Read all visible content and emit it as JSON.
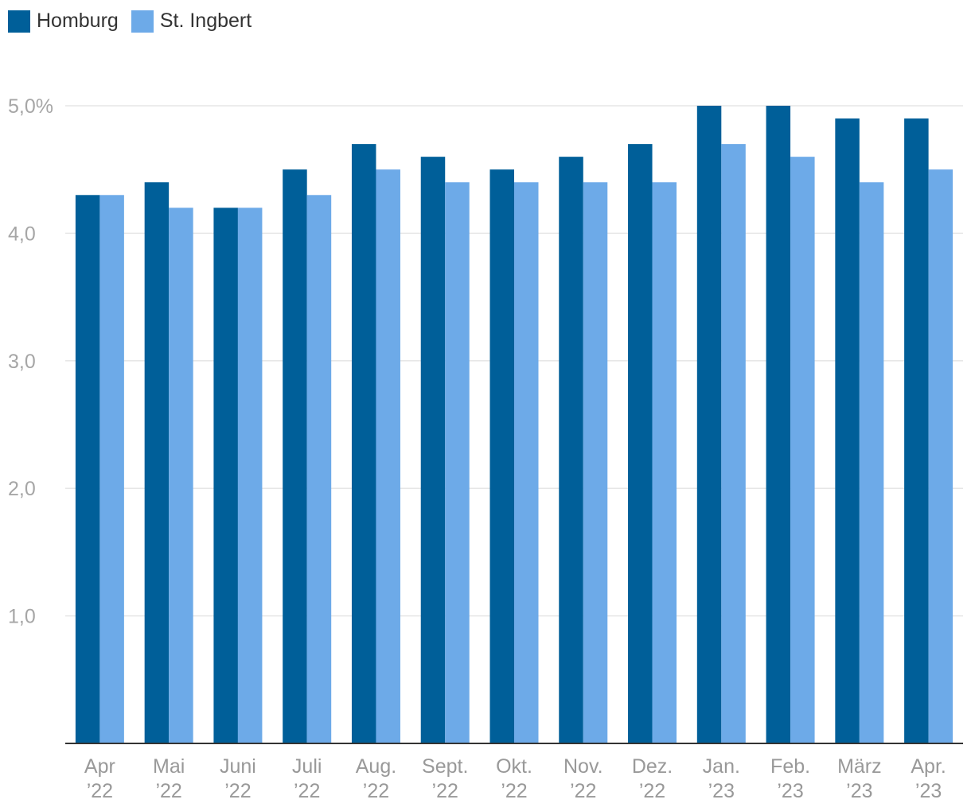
{
  "chart_data": {
    "type": "bar",
    "categories": [
      [
        "Apr",
        "’22"
      ],
      [
        "Mai",
        "’22"
      ],
      [
        "Juni",
        "’22"
      ],
      [
        "Juli",
        "’22"
      ],
      [
        "Aug.",
        "’22"
      ],
      [
        "Sept.",
        "’22"
      ],
      [
        "Okt.",
        "’22"
      ],
      [
        "Nov.",
        "’22"
      ],
      [
        "Dez.",
        "’22"
      ],
      [
        "Jan.",
        "’23"
      ],
      [
        "Feb.",
        "’23"
      ],
      [
        "März",
        "’23"
      ],
      [
        "Apr.",
        "’23"
      ]
    ],
    "series": [
      {
        "name": "Homburg",
        "color": "#005f99",
        "values": [
          4.3,
          4.4,
          4.2,
          4.5,
          4.7,
          4.6,
          4.5,
          4.6,
          4.7,
          5.0,
          5.0,
          4.9,
          4.9
        ]
      },
      {
        "name": "St. Ingbert",
        "color": "#6daae8",
        "values": [
          4.3,
          4.2,
          4.2,
          4.3,
          4.5,
          4.4,
          4.4,
          4.4,
          4.4,
          4.7,
          4.6,
          4.4,
          4.5
        ]
      }
    ],
    "y_ticks": [
      {
        "value": 1,
        "label": "1,0"
      },
      {
        "value": 2,
        "label": "2,0"
      },
      {
        "value": 3,
        "label": "3,0"
      },
      {
        "value": 4,
        "label": "4,0"
      },
      {
        "value": 5,
        "label": "5,0%"
      }
    ],
    "ylim": [
      0,
      5
    ],
    "grid": true,
    "legend_position": "top-left",
    "title": "",
    "xlabel": "",
    "ylabel": ""
  }
}
